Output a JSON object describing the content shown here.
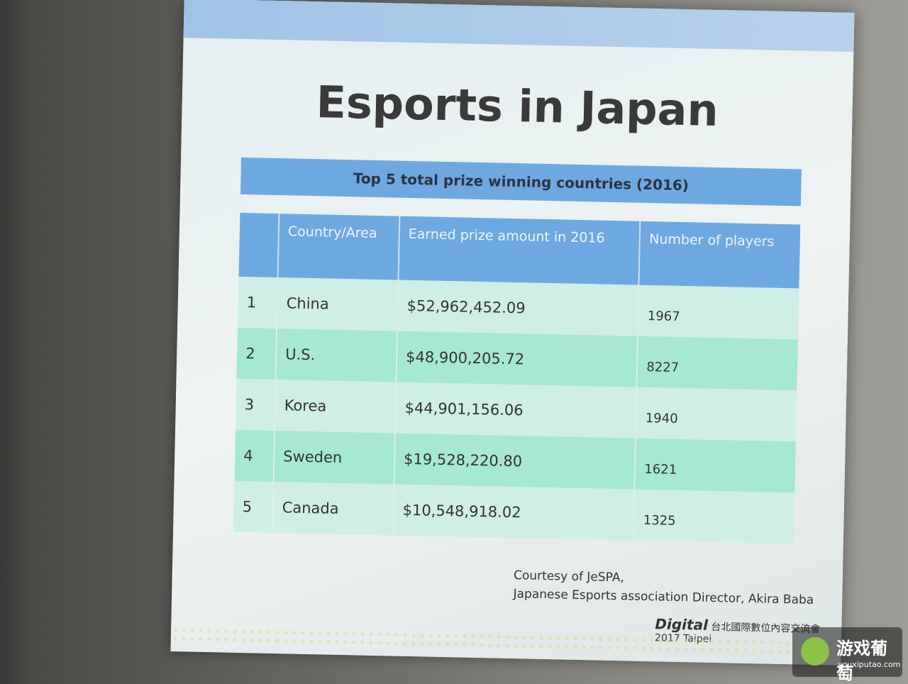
{
  "slide": {
    "title": "Esports in Japan",
    "table": {
      "caption": "Top 5 total prize winning countries (2016)",
      "headers": [
        "Country/Area",
        "Earned prize amount in 2016",
        "Number of players"
      ],
      "rows": [
        [
          "1",
          "China",
          "$52,962,452.09",
          "1967"
        ],
        [
          "2",
          "U.S.",
          "$48,900,205.72",
          "8227"
        ],
        [
          "3",
          "Korea",
          "$44,901,156.06",
          "1940"
        ],
        [
          "4",
          "Sweden",
          "$19,528,220.80",
          "1621"
        ],
        [
          "5",
          "Canada",
          "$10,548,918.02",
          "1325"
        ]
      ]
    },
    "credit": [
      "Courtesy of JeSPA,",
      "Japanese Esports association Director, Akira Baba"
    ],
    "logo": {
      "name": "Digital",
      "sub": "2017 Taipei",
      "org": "台北國際數位內容交流會"
    }
  },
  "watermark": {
    "name": "游戏葡萄",
    "url": "youxiputao.com"
  }
}
